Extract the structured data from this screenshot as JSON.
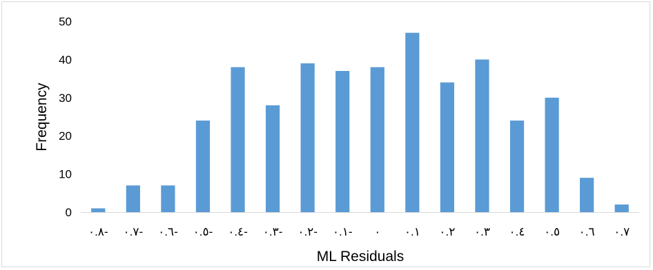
{
  "chart_data": {
    "type": "bar",
    "title": "",
    "xlabel": "ML Residuals",
    "ylabel": "Frequency",
    "ylim": [
      0,
      50
    ],
    "yticks": [
      0,
      10,
      20,
      30,
      40,
      50
    ],
    "grid": false,
    "legend": "none",
    "bar_color": "#5b9bd5",
    "axis_color": "#d9d9d9",
    "categories": [
      "٠.٨-",
      "٠.٧-",
      "٠.٦-",
      "٠.٥-",
      "٠.٤-",
      "٠.٣-",
      "٠.٢-",
      "٠.١-",
      "٠",
      "٠.١",
      "٠.٢",
      "٠.٣",
      "٠.٤",
      "٠.٥",
      "٠.٦",
      "٠.٧"
    ],
    "values": [
      1,
      7,
      7,
      24,
      38,
      28,
      39,
      37,
      38,
      47,
      34,
      40,
      24,
      30,
      9,
      2
    ]
  }
}
